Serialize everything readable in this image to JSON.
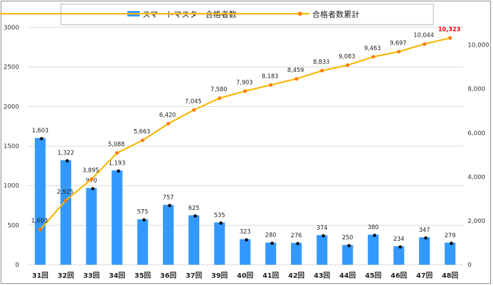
{
  "chart_data": {
    "type": "bar",
    "categories": [
      "31回",
      "32回",
      "33回",
      "34回",
      "35回",
      "36回",
      "37回",
      "39回",
      "40回",
      "41回",
      "42回",
      "43回",
      "44回",
      "45回",
      "46回",
      "47回",
      "48回"
    ],
    "series": [
      {
        "name": "スマートマスター合格者数",
        "type": "bar",
        "axis": "left",
        "color": "#3399ff",
        "values": [
          1603,
          1322,
          970,
          1193,
          575,
          757,
          625,
          535,
          323,
          280,
          276,
          374,
          250,
          380,
          234,
          347,
          279
        ],
        "labels": [
          "1,603",
          "1,322",
          "970",
          "1,193",
          "575",
          "757",
          "625",
          "535",
          "323",
          "280",
          "276",
          "374",
          "250",
          "380",
          "234",
          "347",
          "279"
        ]
      },
      {
        "name": "合格者数累計",
        "type": "line",
        "axis": "right",
        "color": "#f5b800",
        "marker_color": "#ff7a00",
        "values": [
          1603,
          2925,
          3895,
          5088,
          5663,
          6420,
          7045,
          7580,
          7903,
          8183,
          8459,
          8833,
          9083,
          9463,
          9697,
          10044,
          10323
        ],
        "labels": [
          "1,603",
          "2,925",
          "3,895",
          "5,088",
          "5,663",
          "6,420",
          "7,045",
          "7,580",
          "7,903",
          "8,183",
          "8,459",
          "8,833",
          "9,083",
          "9,463",
          "9,697",
          "10,044",
          "10,323"
        ],
        "highlight_last_color": "#ff0000"
      }
    ],
    "y_left": {
      "ylim": [
        0,
        3000
      ],
      "ticks": [
        "0",
        "500",
        "1000",
        "1500",
        "2000",
        "2500",
        "3000"
      ]
    },
    "y_right": {
      "ylim": [
        0,
        10800
      ],
      "ticks": [
        "0",
        "2,000",
        "4,000",
        "6,000",
        "8,000",
        "10,000"
      ]
    },
    "grid": true,
    "legend_position": "top"
  }
}
